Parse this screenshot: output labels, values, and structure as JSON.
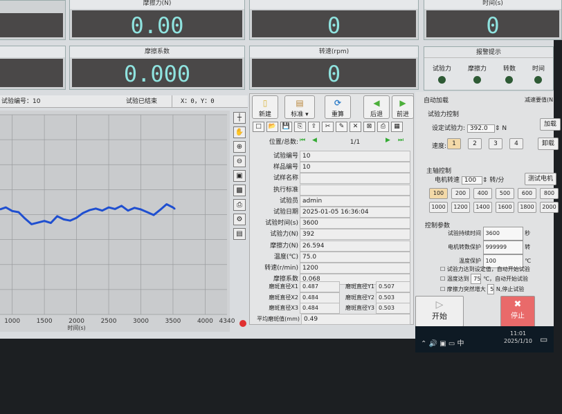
{
  "gauges": {
    "friction": {
      "label": "摩擦力(N)",
      "value": "0.00"
    },
    "top_mid": {
      "value": "0"
    },
    "time": {
      "label": "时间(s)",
      "value": "0"
    },
    "coef": {
      "label": "摩擦系数",
      "value": "0.000"
    },
    "rpm": {
      "label": "转速(rpm)",
      "value": "0"
    }
  },
  "alarm": {
    "title": "报警提示",
    "lamps": [
      "试验力",
      "摩擦力",
      "转数",
      "时间"
    ]
  },
  "status": {
    "test_no": "试验编号：10",
    "state": "试验已结束",
    "coords": "X：0，Y：0"
  },
  "chart_data": {
    "type": "line",
    "xlabel": "时间(s)",
    "xlim": [
      810,
      4340
    ],
    "ylim": [
      0,
      50
    ],
    "xticks": [
      1000,
      1500,
      2000,
      2500,
      3000,
      3500,
      4000,
      4340
    ],
    "grid": true,
    "color": "#1f4fd0",
    "x": [
      810,
      900,
      1000,
      1100,
      1200,
      1300,
      1400,
      1500,
      1600,
      1700,
      1800,
      1900,
      2000,
      2100,
      2200,
      2300,
      2400,
      2500,
      2600,
      2700,
      2800,
      2900,
      3000,
      3100,
      3200,
      3300,
      3400,
      3500,
      3530
    ],
    "y": [
      26.3,
      26.8,
      25.9,
      25.6,
      24.0,
      22.6,
      23.0,
      23.4,
      22.9,
      24.6,
      23.8,
      23.5,
      24.2,
      25.4,
      26.1,
      26.5,
      26.0,
      26.8,
      26.4,
      27.2,
      26.0,
      26.7,
      26.3,
      25.6,
      24.9,
      26.2,
      27.6,
      26.8,
      26.4
    ]
  },
  "chart_tools": [
    "crosshair-icon",
    "pan-icon",
    "zoom-in-icon",
    "zoom-out-icon",
    "fit-icon",
    "reset-icon",
    "print-icon",
    "print-setup-icon",
    "clipboard-icon"
  ],
  "toolbar": {
    "new": "新建",
    "standard": "标准",
    "recalc": "重算",
    "back": "后退",
    "forward": "前进"
  },
  "nav": {
    "label": "位置/总数:",
    "value": "1/1"
  },
  "fields": [
    {
      "label": "试验编号",
      "value": "10"
    },
    {
      "label": "样品编号",
      "value": "10"
    },
    {
      "label": "试样名称",
      "value": ""
    },
    {
      "label": "执行标准",
      "value": ""
    },
    {
      "label": "试验员",
      "value": "admin"
    },
    {
      "label": "试验日期",
      "value": "2025-01-05 16:36:04"
    },
    {
      "label": "试验时间(s)",
      "value": "3600"
    },
    {
      "label": "试验力(N)",
      "value": "392"
    },
    {
      "label": "摩擦力(N)",
      "value": "26.594"
    },
    {
      "label": "温度(℃)",
      "value": "75.0"
    },
    {
      "label": "转速(r/min)",
      "value": "1200"
    },
    {
      "label": "摩擦系数",
      "value": "0.068"
    }
  ],
  "scars": [
    {
      "lx": "磨斑直径X1",
      "vx": "0.487",
      "ly": "磨斑直径Y1",
      "vy": "0.507"
    },
    {
      "lx": "磨斑直径X2",
      "vx": "0.484",
      "ly": "磨斑直径Y2",
      "vy": "0.503"
    },
    {
      "lx": "磨斑直径X3",
      "vx": "0.484",
      "ly": "磨斑直径Y3",
      "vy": "0.503"
    }
  ],
  "avg": {
    "label": "平均磨斑值(mm)",
    "value": "0.49"
  },
  "right": {
    "tab1": "自动加载",
    "tab2": "减速要值(N",
    "force_group": "试验力控制",
    "set_force_label": "设定试验力:",
    "set_force": "392.0",
    "unit_n": "N",
    "load_btn": "加载",
    "unload_btn": "卸载",
    "speed_label": "速度:",
    "speeds": [
      "1",
      "2",
      "3",
      "4"
    ],
    "spindle_group": "主轴控制",
    "motor_label": "电机转速",
    "motor_value": "100",
    "motor_unit": "转/分",
    "test_motor": "测试电机",
    "rpm_buttons": [
      "100",
      "200",
      "400",
      "500",
      "600",
      "800",
      "1000",
      "1200",
      "1400",
      "1600",
      "1800",
      "2000"
    ],
    "params_group": "控制参数",
    "duration_label": "试验持续时间",
    "duration": "3600",
    "duration_unit": "秒",
    "rev_label": "电机转数保护",
    "rev": "999999",
    "rev_unit": "转",
    "temp_label": "温度保护",
    "temp": "100",
    "temp_unit": "℃",
    "chk1": "试验力达到设定值，自动开始试验",
    "chk2a": "温度达到",
    "chk2v": "75",
    "chk2b": "℃，自动开始试验",
    "chk3a": "摩擦力突然增大",
    "chk3v": "5",
    "chk3b": "N,停止试验",
    "start": "开始",
    "stop": "停止"
  },
  "taskbar": {
    "time": "11:01",
    "date": "2025/1/10",
    "ime": "中"
  }
}
